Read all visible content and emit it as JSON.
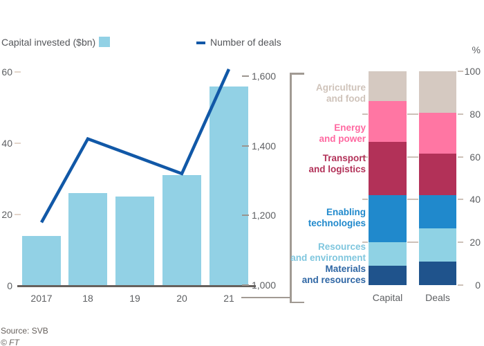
{
  "legend": {
    "capital": {
      "label": "Capital invested ($bn)",
      "swatch_color": "#92d1e5"
    },
    "deals": {
      "label": "Number of deals",
      "line_color": "#1158a7"
    }
  },
  "footer": {
    "source": "Source: SVB",
    "ft": "© FT"
  },
  "colors": {
    "bar": "#92d1e5",
    "line": "#1158a7",
    "axis_text": "#5d5f62",
    "baseline": "#66605c",
    "tick_beige": "#e3d5ca",
    "tick_beige_dark": "#cdc1b8",
    "tick_grey": "#9b948e",
    "bracket": "#a19a93"
  },
  "chart_data": [
    {
      "type": "bar",
      "subtype": "combo-bar-line",
      "categories": [
        "2017",
        "18",
        "19",
        "20",
        "21"
      ],
      "series": [
        {
          "name": "Capital invested ($bn)",
          "kind": "bar",
          "axis": "left",
          "color": "#92d1e5",
          "values": [
            14,
            26,
            25,
            31,
            56
          ]
        },
        {
          "name": "Number of deals",
          "kind": "line",
          "axis": "right",
          "color": "#1158a7",
          "values": [
            1180,
            1420,
            1370,
            1320,
            1620
          ]
        }
      ],
      "left_axis": {
        "label": "Capital invested ($bn)",
        "ticks": [
          0,
          20,
          40,
          60
        ],
        "range": [
          0,
          60
        ]
      },
      "right_axis": {
        "label": "Number of deals",
        "ticks": [
          1000,
          1200,
          1400,
          1600
        ],
        "tick_labels": [
          "1,000",
          "1,200",
          "1,400",
          "1,600"
        ],
        "range": [
          1000,
          1600
        ]
      },
      "grid": false
    },
    {
      "type": "bar",
      "subtype": "stacked-100",
      "unit": "%",
      "columns": [
        "Capital",
        "Deals"
      ],
      "axis": {
        "ticks": [
          0,
          20,
          40,
          60,
          80,
          100
        ],
        "range": [
          0,
          100
        ],
        "position": "right"
      },
      "note": "segments listed bottom-to-top; values are % of 2021 totals",
      "segments": [
        {
          "name": "Materials and resources",
          "label_lines": [
            "Materials",
            "and resources"
          ],
          "color": "#1f538c",
          "label_color": "#2e66a4",
          "values": {
            "Capital": 9,
            "Deals": 11
          }
        },
        {
          "name": "Resources and environment",
          "label_lines": [
            "Resources",
            "and environment"
          ],
          "color": "#8fd2e4",
          "label_color": "#7fc6de",
          "values": {
            "Capital": 11,
            "Deals": 15.5
          }
        },
        {
          "name": "Enabling technologies",
          "label_lines": [
            "Enabling",
            "technologies"
          ],
          "color": "#2089cc",
          "label_color": "#2089cc",
          "values": {
            "Capital": 22,
            "Deals": 15.5
          }
        },
        {
          "name": "Transport and logistics",
          "label_lines": [
            "Transport",
            "and logistics"
          ],
          "color": "#b23158",
          "label_color": "#b23158",
          "values": {
            "Capital": 25,
            "Deals": 19.5
          }
        },
        {
          "name": "Energy and power",
          "label_lines": [
            "Energy",
            "and power"
          ],
          "color": "#ff76a3",
          "label_color": "#ff69a1",
          "values": {
            "Capital": 19,
            "Deals": 19
          }
        },
        {
          "name": "Agriculture and food",
          "label_lines": [
            "Agriculture",
            "and food"
          ],
          "color": "#d5c9c1",
          "label_color": "#cfc3ba",
          "values": {
            "Capital": 14,
            "Deals": 19.5
          }
        }
      ]
    }
  ]
}
